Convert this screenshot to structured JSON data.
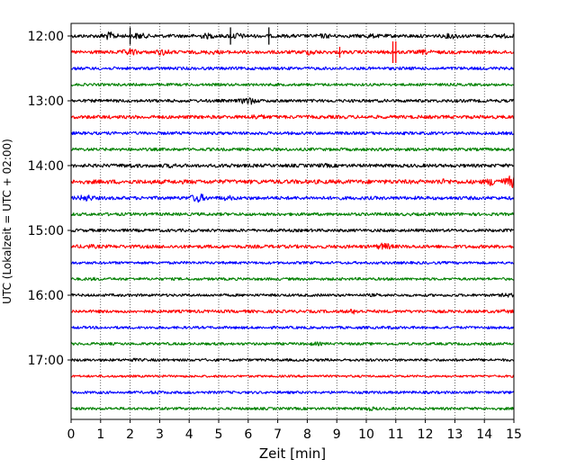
{
  "chart_data": {
    "type": "line",
    "title": "",
    "xlabel": "Zeit  [min]",
    "ylabel": "UTC (Lokalzeit = UTC + 02:00)",
    "xlim": [
      0,
      15
    ],
    "x_ticks": [
      "0",
      "1",
      "2",
      "3",
      "4",
      "5",
      "6",
      "7",
      "8",
      "9",
      "10",
      "11",
      "12",
      "13",
      "14",
      "15"
    ],
    "y_axis": {
      "start": "12:00",
      "end": "18:00",
      "minutes_per_trace": 15,
      "ticks": [
        "12:00",
        "13:00",
        "14:00",
        "15:00",
        "16:00",
        "17:00"
      ]
    },
    "grid": "vertical dotted lines at each minute",
    "trace_colors": [
      "#000000",
      "#ff0000",
      "#0000ff",
      "#008000"
    ],
    "series": [
      {
        "start": "12:00",
        "color": "#000000",
        "amplitude": 0.9,
        "events": [
          [
            1.3,
            2.5
          ],
          [
            2.3,
            2.0
          ],
          [
            4.6,
            1.8
          ],
          [
            5.6,
            2.0
          ],
          [
            8.6,
            1.5
          ],
          [
            10.1,
            1.5
          ],
          [
            12.9,
            1.8
          ],
          [
            14.6,
            1.4
          ]
        ],
        "spikes": [
          [
            2.0,
            4.0
          ],
          [
            5.4,
            4.0
          ],
          [
            6.7,
            4.0
          ]
        ]
      },
      {
        "start": "12:15",
        "color": "#ff0000",
        "amplitude": 0.9,
        "events": [
          [
            2.0,
            2.2
          ],
          [
            3.1,
            2.0
          ],
          [
            4.8,
            1.4
          ],
          [
            8.1,
            1.8
          ],
          [
            12.0,
            1.6
          ]
        ],
        "spikes": [
          [
            10.9,
            5.0
          ],
          [
            11.0,
            5.0
          ],
          [
            9.1,
            2.5
          ]
        ]
      },
      {
        "start": "12:30",
        "color": "#0000ff",
        "amplitude": 0.8,
        "events": [],
        "spikes": []
      },
      {
        "start": "12:45",
        "color": "#008000",
        "amplitude": 0.7,
        "events": [],
        "spikes": []
      },
      {
        "start": "13:00",
        "color": "#000000",
        "amplitude": 0.8,
        "events": [
          [
            6.0,
            2.8
          ]
        ],
        "spikes": []
      },
      {
        "start": "13:15",
        "color": "#ff0000",
        "amplitude": 0.9,
        "events": [
          [
            6.3,
            1.8
          ]
        ],
        "spikes": []
      },
      {
        "start": "13:30",
        "color": "#0000ff",
        "amplitude": 0.8,
        "events": [],
        "spikes": []
      },
      {
        "start": "13:45",
        "color": "#008000",
        "amplitude": 0.8,
        "events": [],
        "spikes": []
      },
      {
        "start": "14:00",
        "color": "#000000",
        "amplitude": 0.9,
        "events": [
          [
            2.0,
            1.4
          ],
          [
            3.4,
            1.4
          ],
          [
            5.3,
            1.3
          ],
          [
            8.6,
            1.3
          ]
        ],
        "spikes": []
      },
      {
        "start": "14:15",
        "color": "#ff0000",
        "amplitude": 1.1,
        "events": [
          [
            12.6,
            1.5
          ],
          [
            14.3,
            2.2
          ],
          [
            14.9,
            3.0
          ]
        ],
        "spikes": []
      },
      {
        "start": "14:30",
        "color": "#0000ff",
        "amplitude": 0.9,
        "events": [
          [
            0.5,
            2.2
          ],
          [
            4.3,
            2.8
          ],
          [
            5.3,
            1.6
          ]
        ],
        "spikes": []
      },
      {
        "start": "14:45",
        "color": "#008000",
        "amplitude": 0.8,
        "events": [],
        "spikes": []
      },
      {
        "start": "15:00",
        "color": "#000000",
        "amplitude": 0.8,
        "events": [],
        "spikes": []
      },
      {
        "start": "15:15",
        "color": "#ff0000",
        "amplitude": 0.9,
        "events": [
          [
            0.6,
            1.4
          ],
          [
            10.6,
            2.3
          ]
        ],
        "spikes": []
      },
      {
        "start": "15:30",
        "color": "#0000ff",
        "amplitude": 0.7,
        "events": [],
        "spikes": []
      },
      {
        "start": "15:45",
        "color": "#008000",
        "amplitude": 0.7,
        "events": [
          [
            0.7,
            1.3
          ]
        ],
        "spikes": []
      },
      {
        "start": "16:00",
        "color": "#000000",
        "amplitude": 0.7,
        "events": [
          [
            10.3,
            1.3
          ],
          [
            14.8,
            1.7
          ]
        ],
        "spikes": []
      },
      {
        "start": "16:15",
        "color": "#ff0000",
        "amplitude": 0.8,
        "events": [
          [
            9.6,
            1.8
          ],
          [
            14.7,
            1.3
          ]
        ],
        "spikes": []
      },
      {
        "start": "16:30",
        "color": "#0000ff",
        "amplitude": 0.7,
        "events": [
          [
            10.8,
            1.3
          ]
        ],
        "spikes": []
      },
      {
        "start": "16:45",
        "color": "#008000",
        "amplitude": 0.7,
        "events": [
          [
            8.3,
            1.5
          ]
        ],
        "spikes": []
      },
      {
        "start": "17:00",
        "color": "#000000",
        "amplitude": 0.7,
        "events": [
          [
            2.1,
            1.3
          ]
        ],
        "spikes": []
      },
      {
        "start": "17:15",
        "color": "#ff0000",
        "amplitude": 0.6,
        "events": [],
        "spikes": []
      },
      {
        "start": "17:30",
        "color": "#0000ff",
        "amplitude": 0.7,
        "events": [
          [
            2.9,
            1.4
          ]
        ],
        "spikes": []
      },
      {
        "start": "17:45",
        "color": "#008000",
        "amplitude": 0.7,
        "events": [
          [
            10.1,
            1.7
          ]
        ],
        "spikes": []
      }
    ]
  }
}
